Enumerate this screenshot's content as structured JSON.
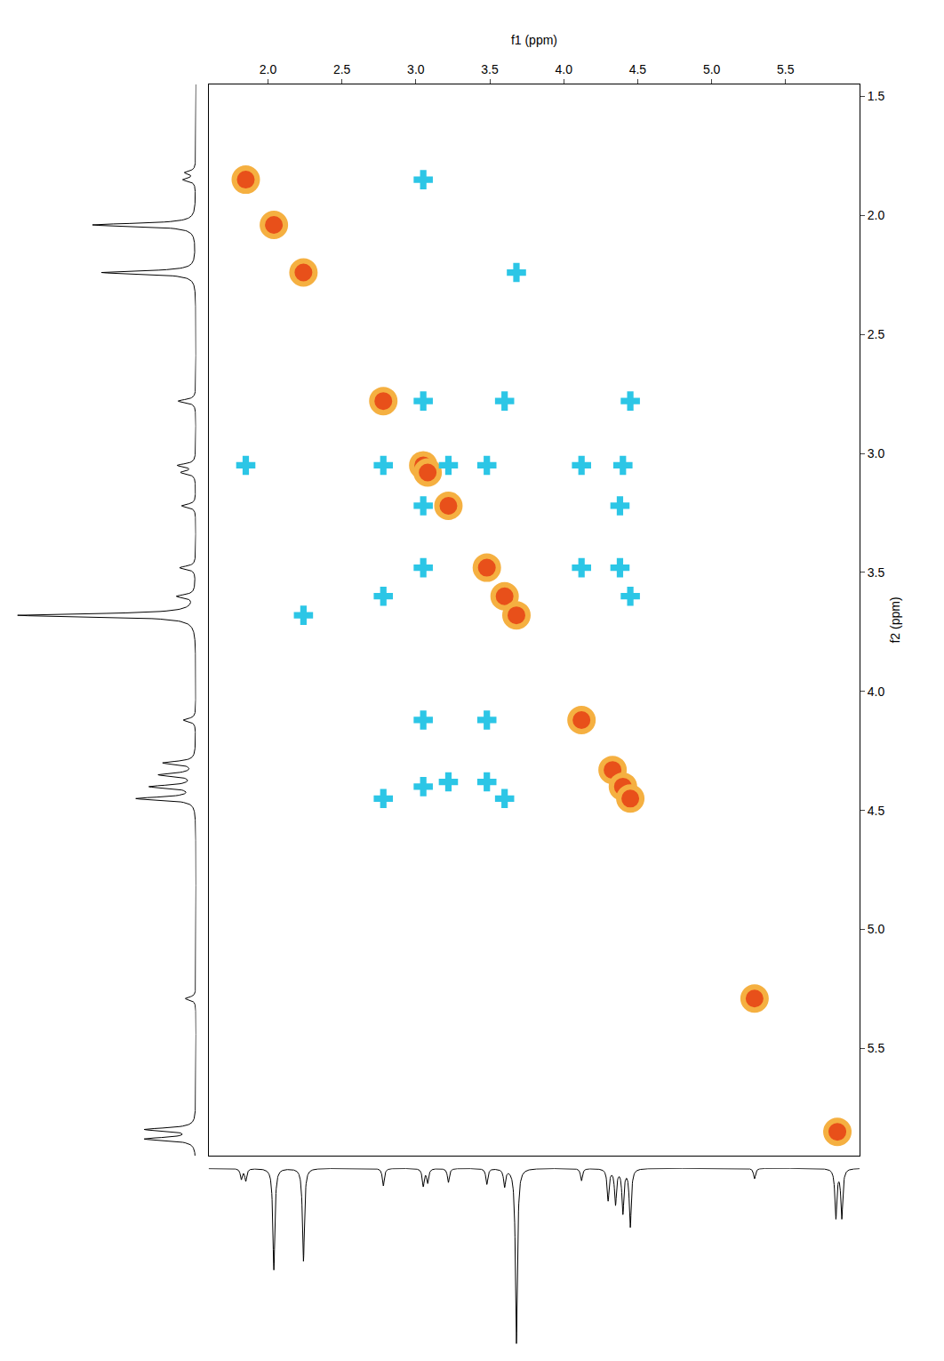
{
  "chart_data": {
    "type": "nmr_cosy",
    "x_label": "f1 (ppm)",
    "y_label": "f2 (ppm)",
    "xlim": [
      1.6,
      6.0
    ],
    "ylim": [
      5.95,
      1.45
    ],
    "xticks": [
      {
        "value": 2.0,
        "label": "2.0"
      },
      {
        "value": 2.5,
        "label": "2.5"
      },
      {
        "value": 3.0,
        "label": "3.0"
      },
      {
        "value": 3.5,
        "label": "3.5"
      },
      {
        "value": 4.0,
        "label": "4.0"
      },
      {
        "value": 4.5,
        "label": "4.5"
      },
      {
        "value": 5.0,
        "label": "5.0"
      },
      {
        "value": 5.5,
        "label": "5.5"
      }
    ],
    "yticks": [
      {
        "value": 1.5,
        "label": "1.5"
      },
      {
        "value": 2.0,
        "label": "2.0"
      },
      {
        "value": 2.5,
        "label": "2.5"
      },
      {
        "value": 3.0,
        "label": "3.0"
      },
      {
        "value": 3.5,
        "label": "3.5"
      },
      {
        "value": 4.0,
        "label": "4.0"
      },
      {
        "value": 4.5,
        "label": "4.5"
      },
      {
        "value": 5.0,
        "label": "5.0"
      },
      {
        "value": 5.5,
        "label": "5.5"
      }
    ],
    "grid": false,
    "series": [
      {
        "type": "diagonal",
        "color": "#e8501a",
        "marker": "circle",
        "x": [
          1.85,
          2.04,
          2.24,
          2.78,
          3.05,
          3.08,
          3.22,
          3.48,
          3.6,
          3.68,
          4.12,
          4.33,
          4.4,
          4.45,
          5.29,
          5.85
        ],
        "y": [
          1.85,
          2.04,
          2.24,
          2.78,
          3.05,
          3.08,
          3.22,
          3.48,
          3.6,
          3.68,
          4.12,
          4.33,
          4.4,
          4.45,
          5.29,
          5.85
        ]
      },
      {
        "type": "cross",
        "color": "#2cc6e6",
        "marker": "cross",
        "x": [
          3.05,
          1.85,
          3.68,
          2.24,
          3.05,
          2.78,
          4.45,
          2.78,
          3.48,
          3.05,
          4.12,
          3.05,
          4.4,
          3.05,
          4.38,
          3.22,
          4.12,
          3.48,
          4.38,
          3.48,
          4.45,
          3.6,
          3.6,
          2.78,
          3.22,
          3.05
        ],
        "y": [
          1.85,
          3.05,
          2.24,
          3.68,
          2.78,
          3.05,
          2.78,
          4.45,
          3.05,
          3.48,
          3.05,
          4.12,
          3.05,
          4.4,
          3.22,
          4.38,
          3.48,
          4.12,
          3.48,
          4.38,
          3.6,
          4.45,
          2.78,
          3.6,
          3.05,
          3.22
        ]
      }
    ],
    "projection": {
      "color": "#000000",
      "shifts": [
        1.82,
        1.85,
        2.04,
        2.24,
        2.78,
        3.05,
        3.08,
        3.22,
        3.48,
        3.6,
        3.68,
        4.12,
        4.3,
        4.35,
        4.4,
        4.45,
        5.29,
        5.84,
        5.88
      ],
      "heights": [
        0.06,
        0.07,
        0.58,
        0.53,
        0.1,
        0.1,
        0.08,
        0.08,
        0.09,
        0.1,
        1.0,
        0.07,
        0.18,
        0.2,
        0.25,
        0.33,
        0.06,
        0.28,
        0.28
      ]
    }
  }
}
